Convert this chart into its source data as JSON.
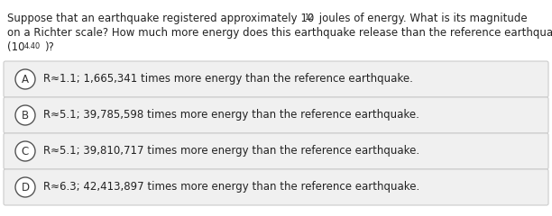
{
  "bg_color": "#ffffff",
  "text_color": "#222222",
  "label_color": "#333333",
  "option_box_color": "#f0f0f0",
  "option_box_edge_color": "#cccccc",
  "circle_color": "#ffffff",
  "circle_edge_color": "#555555",
  "font_size": 8.5,
  "options": [
    {
      "label": "A",
      "text": "R≈1.1; 1,665,341 times more energy than the reference earthquake."
    },
    {
      "label": "B",
      "text": "R≈5.1; 39,785,598 times more energy than the reference earthquake."
    },
    {
      "label": "C",
      "text": "R≈5.1; 39,810,717 times more energy than the reference earthquake."
    },
    {
      "label": "D",
      "text": "R≈6.3; 42,413,897 times more energy than the reference earthquake."
    }
  ]
}
